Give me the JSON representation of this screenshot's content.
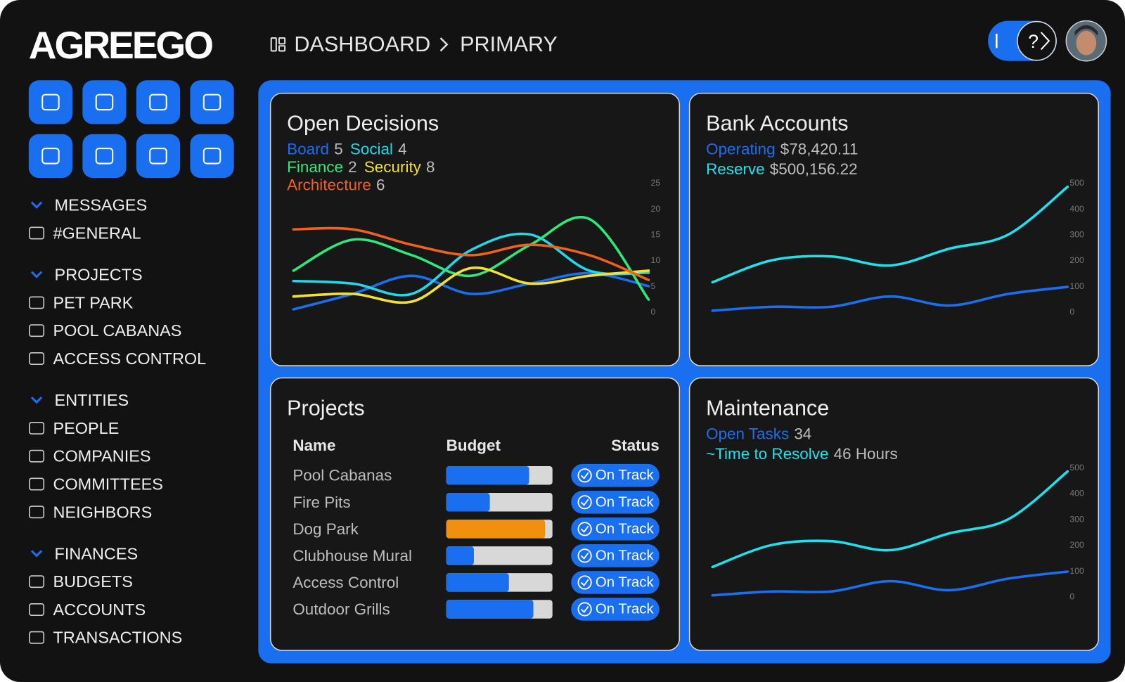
{
  "header": {
    "logo": "AGREEGO",
    "breadcrumb": [
      "DASHBOARD",
      "PRIMARY"
    ],
    "help": "?"
  },
  "sidebar": {
    "sections": [
      {
        "title": "MESSAGES",
        "items": [
          "#GENERAL"
        ]
      },
      {
        "title": "PROJECTS",
        "items": [
          "PET PARK",
          "POOL CABANAS",
          "ACCESS CONTROL"
        ]
      },
      {
        "title": "ENTITIES",
        "items": [
          "PEOPLE",
          "COMPANIES",
          "COMMITTEES",
          "NEIGHBORS"
        ]
      },
      {
        "title": "FINANCES",
        "items": [
          "BUDGETS",
          "ACCOUNTS",
          "TRANSACTIONS"
        ]
      }
    ]
  },
  "chart_data": [
    {
      "type": "line",
      "title": "Open Decisions",
      "categories": [
        null,
        null,
        null,
        null,
        null,
        null,
        null
      ],
      "series": [
        {
          "name": "Board",
          "color": "#1a6ef0",
          "summary": 5,
          "values": [
            0.5,
            3.5,
            7,
            3.5,
            5.5,
            7.5,
            5
          ]
        },
        {
          "name": "Social",
          "color": "#22d8e8",
          "summary": 4,
          "values": [
            6,
            5.5,
            3.5,
            12,
            15,
            8,
            7.6
          ]
        },
        {
          "name": "Finance",
          "color": "#2ee87a",
          "summary": 2,
          "values": [
            8,
            14,
            11,
            7,
            13,
            18,
            2.4
          ]
        },
        {
          "name": "Security",
          "color": "#f2e033",
          "summary": 8,
          "values": [
            3,
            3.5,
            2,
            8.5,
            5.5,
            7,
            8
          ]
        },
        {
          "name": "Architecture",
          "color": "#f0601e",
          "summary": 6,
          "values": [
            16,
            16,
            13,
            11,
            13,
            11,
            6.2
          ]
        }
      ],
      "ylim": [
        0,
        25
      ],
      "yticks": [
        0,
        5,
        10,
        15,
        20,
        25
      ]
    },
    {
      "type": "line",
      "title": "Bank Accounts",
      "categories": [
        null,
        null,
        null,
        null,
        null,
        null,
        null
      ],
      "series": [
        {
          "name": "Operating",
          "color": "#1a6ef0",
          "summary": "$78,420.11",
          "values": [
            5,
            20,
            20,
            60,
            25,
            70,
            97
          ]
        },
        {
          "name": "Reserve",
          "color": "#1fe0ec",
          "summary": "$500,156.22",
          "values": [
            115,
            200,
            215,
            180,
            245,
            300,
            485
          ]
        }
      ],
      "ylim": [
        0,
        500
      ],
      "yticks": [
        0,
        100,
        200,
        300,
        400,
        500
      ]
    },
    {
      "type": "line",
      "title": "Maintenance",
      "categories": [
        null,
        null,
        null,
        null,
        null,
        null,
        null
      ],
      "series": [
        {
          "name": "Open Tasks",
          "color": "#1a6ef0",
          "summary": 34,
          "values": [
            5,
            20,
            20,
            60,
            25,
            70,
            97
          ]
        },
        {
          "name": "~Time to Resolve",
          "color": "#1fe0ec",
          "summary": "46 Hours",
          "values": [
            115,
            200,
            215,
            180,
            245,
            300,
            485
          ]
        }
      ],
      "ylim": [
        0,
        500
      ],
      "yticks": [
        0,
        100,
        200,
        300,
        400,
        500
      ]
    }
  ],
  "projects": {
    "title": "Projects",
    "columns": [
      "Name",
      "Budget",
      "Status"
    ],
    "rows": [
      {
        "name": "Pool Cabanas",
        "budget": 78,
        "color": "#1a6ef0",
        "status": "On Track"
      },
      {
        "name": "Fire Pits",
        "budget": 41,
        "color": "#1a6ef0",
        "status": "On Track"
      },
      {
        "name": "Dog Park",
        "budget": 93,
        "color": "#f0900e",
        "status": "On Track"
      },
      {
        "name": "Clubhouse Mural",
        "budget": 26,
        "color": "#1a6ef0",
        "status": "On Track"
      },
      {
        "name": "Access Control",
        "budget": 59,
        "color": "#1a6ef0",
        "status": "On Track"
      },
      {
        "name": "Outdoor Grills",
        "budget": 82,
        "color": "#1a6ef0",
        "status": "On Track"
      }
    ]
  }
}
